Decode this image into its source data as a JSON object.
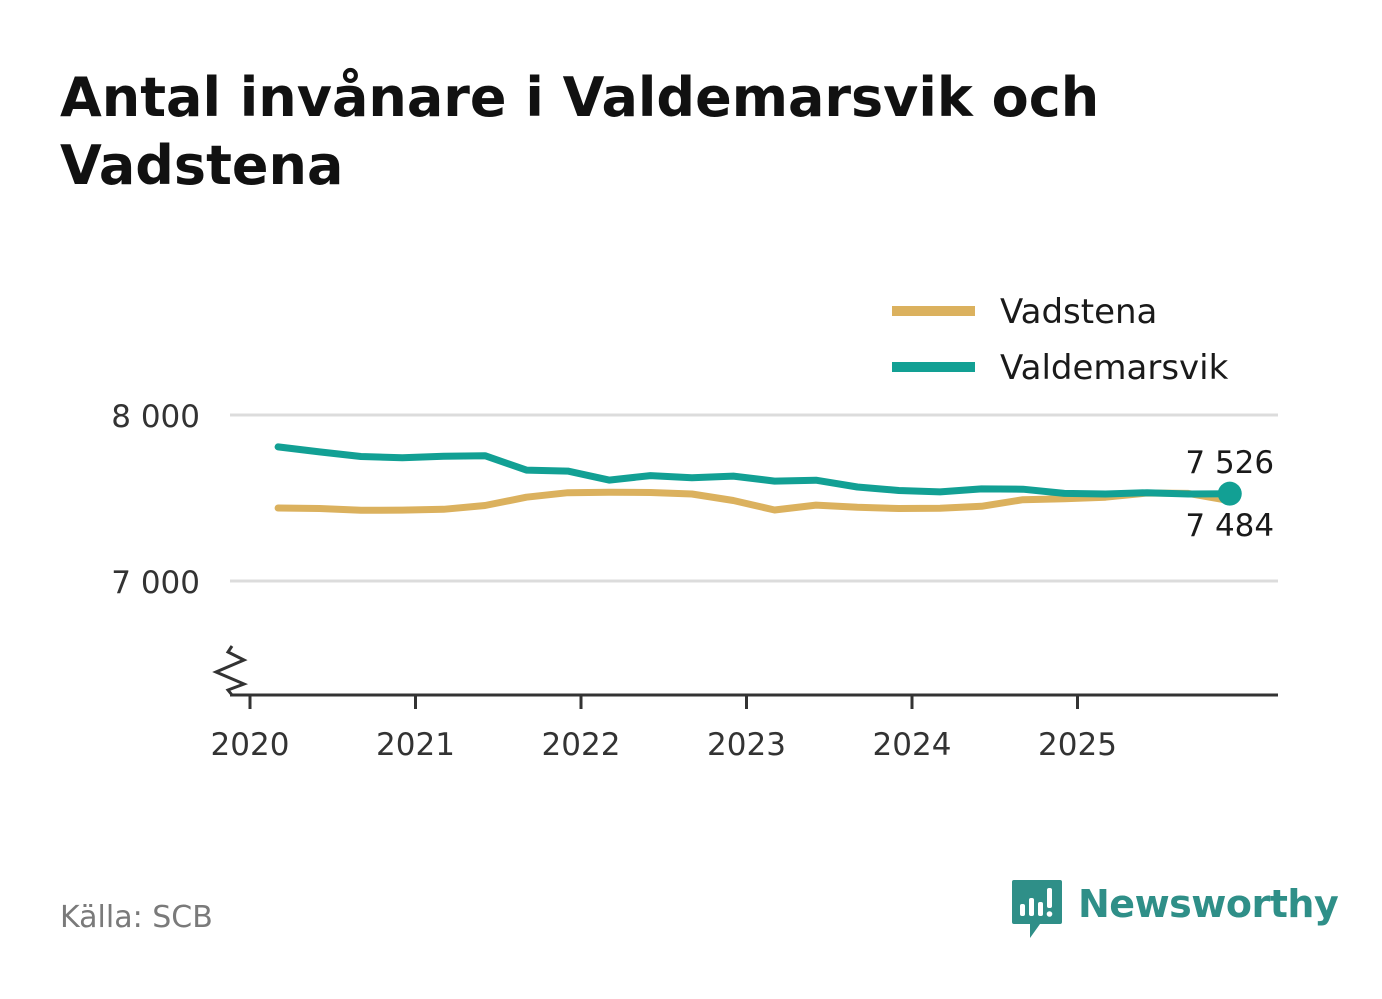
{
  "header": {
    "title": "Antal invånare i Valdemarsvik och Vadstena"
  },
  "footer": {
    "source": "Källa: SCB",
    "brand": "Newsworthy",
    "brand_icon": "newsworthy-logo-icon",
    "brand_color": "#2f8f88"
  },
  "chart_data": {
    "type": "line",
    "title": "Antal invånare i Valdemarsvik och Vadstena",
    "xlabel": "",
    "ylabel": "",
    "x_ticks": [
      "2020",
      "2021",
      "2022",
      "2023",
      "2024",
      "2025"
    ],
    "y_ticks": [
      {
        "value": 7000,
        "label": "7 000"
      },
      {
        "value": 8000,
        "label": "8 000"
      }
    ],
    "ylim": [
      6300,
      8200
    ],
    "y_axis_broken": true,
    "grid": true,
    "legend_position": "top-right",
    "x": [
      2020.17,
      2020.42,
      2020.67,
      2020.92,
      2021.17,
      2021.42,
      2021.67,
      2021.92,
      2022.17,
      2022.42,
      2022.67,
      2022.92,
      2023.17,
      2023.42,
      2023.67,
      2023.92,
      2024.17,
      2024.42,
      2024.67,
      2024.92,
      2025.17,
      2025.42,
      2025.67,
      2025.92
    ],
    "series": [
      {
        "name": "Vadstena",
        "color": "#dbb15e",
        "values": [
          7440,
          7437,
          7426,
          7427,
          7432,
          7455,
          7505,
          7532,
          7535,
          7533,
          7524,
          7485,
          7428,
          7457,
          7444,
          7437,
          7438,
          7450,
          7490,
          7495,
          7505,
          7530,
          7528,
          7484
        ],
        "end_label": "7 484"
      },
      {
        "name": "Valdemarsvik",
        "color": "#12a094",
        "values": [
          7808,
          7778,
          7750,
          7743,
          7752,
          7755,
          7668,
          7662,
          7608,
          7635,
          7622,
          7632,
          7602,
          7607,
          7566,
          7545,
          7537,
          7555,
          7553,
          7528,
          7524,
          7532,
          7524,
          7526
        ],
        "end_label": "7 526"
      }
    ]
  }
}
